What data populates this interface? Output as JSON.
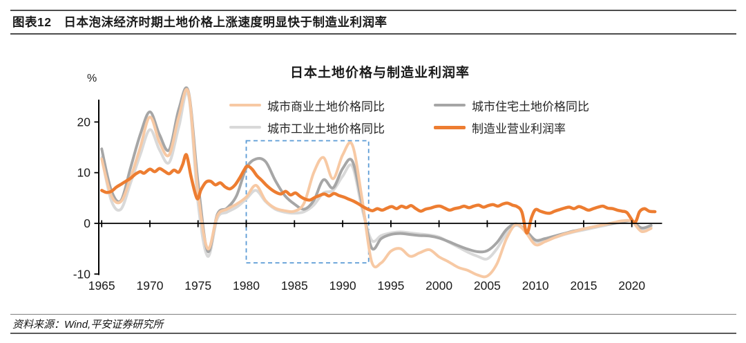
{
  "header": {
    "tag": "图表12",
    "title": "日本泡沫经济时期土地价格上涨速度明显快于制造业利润率"
  },
  "chart": {
    "title": "日本土地价格与制造业利润率",
    "unit_label": "%",
    "legend": [
      {
        "label": "城市商业土地价格同比",
        "color": "#F7C9A4"
      },
      {
        "label": "城市住宅土地价格同比",
        "color": "#A6A6A6"
      },
      {
        "label": "城市工业土地价格同比",
        "color": "#D9D9D9"
      },
      {
        "label": "制造业营业利润率",
        "color": "#ED7D31"
      }
    ]
  },
  "chart_data": {
    "type": "line",
    "title": "日本土地价格与制造业利润率",
    "ylabel": "%",
    "xlabel": "",
    "grid": false,
    "legend_position": "top",
    "xlim": [
      1964.7,
      2023.1
    ],
    "ylim": [
      -10.1,
      24.3
    ],
    "x_ticks": [
      1965,
      1970,
      1975,
      1980,
      1985,
      1990,
      1995,
      2000,
      2005,
      2010,
      2015,
      2020
    ],
    "y_ticks": [
      20,
      10,
      0,
      -10
    ],
    "axis_color": "#000000",
    "highlight_box": {
      "x0": 1980,
      "x1": 1992.7,
      "y0": -7.8,
      "y1": 16.3,
      "color": "#5B9BD5",
      "style": "dashed"
    },
    "series": [
      {
        "name": "城市商业土地价格同比",
        "color": "#F7C9A4",
        "width": 4,
        "z": 3,
        "points": [
          [
            1965,
            12.7
          ],
          [
            1966,
            5.5
          ],
          [
            1967,
            4.3
          ],
          [
            1968,
            9
          ],
          [
            1969,
            15
          ],
          [
            1970,
            21
          ],
          [
            1971,
            16
          ],
          [
            1972,
            13.5
          ],
          [
            1973,
            21
          ],
          [
            1974,
            25.8
          ],
          [
            1975,
            6
          ],
          [
            1976,
            -5
          ],
          [
            1977,
            1.5
          ],
          [
            1978,
            2.8
          ],
          [
            1979,
            3.8
          ],
          [
            1980,
            5.2
          ],
          [
            1981,
            7.5
          ],
          [
            1982,
            4.5
          ],
          [
            1983,
            3
          ],
          [
            1984,
            2.5
          ],
          [
            1985,
            2.4
          ],
          [
            1986,
            4
          ],
          [
            1987,
            10
          ],
          [
            1988,
            13
          ],
          [
            1989,
            8.8
          ],
          [
            1990,
            13.5
          ],
          [
            1991,
            15.5
          ],
          [
            1992,
            5
          ],
          [
            1993,
            -7.5
          ],
          [
            1994,
            -7.8
          ],
          [
            1995,
            -5.5
          ],
          [
            1996,
            -5
          ],
          [
            1997,
            -6.5
          ],
          [
            1998,
            -5.8
          ],
          [
            1999,
            -5.2
          ],
          [
            2000,
            -6.6
          ],
          [
            2001,
            -7.6
          ],
          [
            2002,
            -8.7
          ],
          [
            2003,
            -9.3
          ],
          [
            2004,
            -10.2
          ],
          [
            2005,
            -10.4
          ],
          [
            2006,
            -8
          ],
          [
            2007,
            -3
          ],
          [
            2008,
            -0.2
          ],
          [
            2009,
            -1.8
          ],
          [
            2010,
            -4.2
          ],
          [
            2011,
            -3.6
          ],
          [
            2012,
            -2.8
          ],
          [
            2013,
            -2.1
          ],
          [
            2014,
            -1.6
          ],
          [
            2015,
            -1.1
          ],
          [
            2016,
            -0.7
          ],
          [
            2017,
            -0.3
          ],
          [
            2018,
            0.1
          ],
          [
            2019,
            0.5
          ],
          [
            2020,
            0.4
          ],
          [
            2021,
            -1.6
          ],
          [
            2022,
            -1
          ]
        ]
      },
      {
        "name": "城市住宅土地价格同比",
        "color": "#A6A6A6",
        "width": 4,
        "z": 2,
        "points": [
          [
            1965,
            14.7
          ],
          [
            1966,
            6.5
          ],
          [
            1967,
            4.5
          ],
          [
            1968,
            11
          ],
          [
            1969,
            17.5
          ],
          [
            1970,
            22
          ],
          [
            1971,
            17.5
          ],
          [
            1972,
            14.5
          ],
          [
            1973,
            22.5
          ],
          [
            1974,
            26
          ],
          [
            1975,
            8
          ],
          [
            1976,
            -5.5
          ],
          [
            1977,
            1.8
          ],
          [
            1978,
            3
          ],
          [
            1979,
            5.5
          ],
          [
            1980,
            10.9
          ],
          [
            1981,
            12.7
          ],
          [
            1982,
            12.2
          ],
          [
            1983,
            8.5
          ],
          [
            1984,
            5.5
          ],
          [
            1985,
            3.8
          ],
          [
            1986,
            2.8
          ],
          [
            1987,
            4.5
          ],
          [
            1988,
            8.6
          ],
          [
            1989,
            7
          ],
          [
            1990,
            10.8
          ],
          [
            1991,
            12.3
          ],
          [
            1992,
            4
          ],
          [
            1993,
            -4.8
          ],
          [
            1994,
            -3
          ],
          [
            1995,
            -2.2
          ],
          [
            1996,
            -2
          ],
          [
            1997,
            -2.2
          ],
          [
            1998,
            -2.4
          ],
          [
            1999,
            -2.5
          ],
          [
            2000,
            -2.9
          ],
          [
            2001,
            -3.6
          ],
          [
            2002,
            -4.4
          ],
          [
            2003,
            -5.1
          ],
          [
            2004,
            -5.6
          ],
          [
            2005,
            -5.4
          ],
          [
            2006,
            -3.8
          ],
          [
            2007,
            -1.2
          ],
          [
            2008,
            -0.1
          ],
          [
            2009,
            -1.4
          ],
          [
            2010,
            -3.3
          ],
          [
            2011,
            -3
          ],
          [
            2012,
            -2.5
          ],
          [
            2013,
            -2
          ],
          [
            2014,
            -1.5
          ],
          [
            2015,
            -1.1
          ],
          [
            2016,
            -0.7
          ],
          [
            2017,
            -0.3
          ],
          [
            2018,
            0
          ],
          [
            2019,
            0.3
          ],
          [
            2020,
            0.5
          ],
          [
            2021,
            -0.9
          ],
          [
            2022,
            -0.4
          ]
        ]
      },
      {
        "name": "城市工业土地价格同比",
        "color": "#D9D9D9",
        "width": 4,
        "z": 1,
        "points": [
          [
            1965,
            13
          ],
          [
            1966,
            4.5
          ],
          [
            1967,
            2.8
          ],
          [
            1968,
            8
          ],
          [
            1969,
            13.5
          ],
          [
            1970,
            18.5
          ],
          [
            1971,
            14.5
          ],
          [
            1972,
            12
          ],
          [
            1973,
            19
          ],
          [
            1974,
            25.3
          ],
          [
            1975,
            4
          ],
          [
            1976,
            -6.5
          ],
          [
            1977,
            1
          ],
          [
            1978,
            2.2
          ],
          [
            1979,
            3.2
          ],
          [
            1980,
            4.8
          ],
          [
            1981,
            6.5
          ],
          [
            1982,
            4.3
          ],
          [
            1983,
            2.8
          ],
          [
            1984,
            2.2
          ],
          [
            1985,
            2
          ],
          [
            1986,
            2.3
          ],
          [
            1987,
            3.6
          ],
          [
            1988,
            6
          ],
          [
            1989,
            6.5
          ],
          [
            1990,
            9.3
          ],
          [
            1991,
            11.3
          ],
          [
            1992,
            3
          ],
          [
            1993,
            -3.3
          ],
          [
            1994,
            -2.4
          ],
          [
            1995,
            -1.9
          ],
          [
            1996,
            -1.7
          ],
          [
            1997,
            -1.9
          ],
          [
            1998,
            -2.1
          ],
          [
            1999,
            -2.3
          ],
          [
            2000,
            -2.7
          ],
          [
            2001,
            -3.7
          ],
          [
            2002,
            -4.7
          ],
          [
            2003,
            -5.7
          ],
          [
            2004,
            -6.5
          ],
          [
            2005,
            -7
          ],
          [
            2006,
            -5
          ],
          [
            2007,
            -2
          ],
          [
            2008,
            -0.4
          ],
          [
            2009,
            -1.6
          ],
          [
            2010,
            -3.6
          ],
          [
            2011,
            -3.3
          ],
          [
            2012,
            -2.8
          ],
          [
            2013,
            -2.2
          ],
          [
            2014,
            -1.7
          ],
          [
            2015,
            -1.3
          ],
          [
            2016,
            -0.9
          ],
          [
            2017,
            -0.5
          ],
          [
            2018,
            -0.1
          ],
          [
            2019,
            0.2
          ],
          [
            2020,
            0.4
          ],
          [
            2021,
            -1.1
          ],
          [
            2022,
            -0.7
          ]
        ]
      },
      {
        "name": "制造业营业利润率",
        "color": "#ED7D31",
        "width": 4.5,
        "z": 4,
        "points": [
          [
            1965,
            6.5
          ],
          [
            1965.5,
            6.1
          ],
          [
            1966,
            6.3
          ],
          [
            1966.5,
            7.1
          ],
          [
            1967,
            7.7
          ],
          [
            1967.5,
            8.3
          ],
          [
            1968,
            8.9
          ],
          [
            1968.5,
            9.7
          ],
          [
            1969,
            10.2
          ],
          [
            1969.4,
            9.9
          ],
          [
            1970,
            10.7
          ],
          [
            1970.5,
            10.2
          ],
          [
            1971,
            10.8
          ],
          [
            1971.5,
            10.3
          ],
          [
            1972,
            9.8
          ],
          [
            1972.5,
            10.5
          ],
          [
            1973,
            10.1
          ],
          [
            1973.4,
            11.6
          ],
          [
            1973.8,
            13.5
          ],
          [
            1974.3,
            9
          ],
          [
            1974.9,
            4.9
          ],
          [
            1975.3,
            6.6
          ],
          [
            1975.8,
            8.1
          ],
          [
            1976.3,
            8.3
          ],
          [
            1976.8,
            7.6
          ],
          [
            1977.3,
            8
          ],
          [
            1977.8,
            7.2
          ],
          [
            1978.3,
            6.8
          ],
          [
            1978.8,
            7.5
          ],
          [
            1979.3,
            8.9
          ],
          [
            1979.8,
            10.6
          ],
          [
            1980.1,
            11.3
          ],
          [
            1980.6,
            10.7
          ],
          [
            1981.1,
            9.4
          ],
          [
            1981.6,
            8.5
          ],
          [
            1982.1,
            7.5
          ],
          [
            1982.6,
            6.7
          ],
          [
            1983.1,
            6.1
          ],
          [
            1983.6,
            5.8
          ],
          [
            1984.1,
            6.3
          ],
          [
            1984.6,
            5.6
          ],
          [
            1985.1,
            6
          ],
          [
            1985.6,
            5.3
          ],
          [
            1986.1,
            4.8
          ],
          [
            1986.6,
            4.6
          ],
          [
            1987.1,
            5.1
          ],
          [
            1987.6,
            5.5
          ],
          [
            1988.1,
            5.8
          ],
          [
            1988.6,
            5.4
          ],
          [
            1989.1,
            5.9
          ],
          [
            1989.6,
            5.5
          ],
          [
            1990.1,
            5.2
          ],
          [
            1990.6,
            4.8
          ],
          [
            1991.1,
            4.4
          ],
          [
            1991.6,
            3.9
          ],
          [
            1992.1,
            3.3
          ],
          [
            1992.6,
            2.8
          ],
          [
            1993.1,
            2.5
          ],
          [
            1993.6,
            2.9
          ],
          [
            1994.1,
            2.6
          ],
          [
            1994.6,
            3
          ],
          [
            1995.1,
            3.3
          ],
          [
            1995.6,
            2.9
          ],
          [
            1996.1,
            3.4
          ],
          [
            1996.6,
            3.1
          ],
          [
            1997.1,
            3.5
          ],
          [
            1997.6,
            2.9
          ],
          [
            1998.1,
            2.4
          ],
          [
            1998.6,
            2.8
          ],
          [
            1999.1,
            3
          ],
          [
            1999.6,
            3.3
          ],
          [
            2000.1,
            3.4
          ],
          [
            2000.6,
            3
          ],
          [
            2001.1,
            2.6
          ],
          [
            2001.6,
            2.9
          ],
          [
            2002.1,
            3.1
          ],
          [
            2002.6,
            3.4
          ],
          [
            2003.1,
            3.1
          ],
          [
            2003.6,
            3.4
          ],
          [
            2004.1,
            3.6
          ],
          [
            2004.6,
            3.2
          ],
          [
            2005.1,
            3.5
          ],
          [
            2005.6,
            3.7
          ],
          [
            2006.1,
            3.4
          ],
          [
            2006.6,
            3.8
          ],
          [
            2007.1,
            4
          ],
          [
            2007.6,
            3.6
          ],
          [
            2008.1,
            3.3
          ],
          [
            2008.6,
            2.2
          ],
          [
            2009.1,
            -1.9
          ],
          [
            2009.6,
            1.2
          ],
          [
            2010,
            2.7
          ],
          [
            2010.5,
            2.4
          ],
          [
            2011,
            2.1
          ],
          [
            2011.5,
            2
          ],
          [
            2012,
            2.4
          ],
          [
            2012.5,
            2.7
          ],
          [
            2013,
            3
          ],
          [
            2013.5,
            3.2
          ],
          [
            2014,
            2.9
          ],
          [
            2014.5,
            3.3
          ],
          [
            2015,
            3
          ],
          [
            2015.5,
            2.6
          ],
          [
            2016,
            2.9
          ],
          [
            2016.5,
            3.2
          ],
          [
            2017,
            3.4
          ],
          [
            2017.5,
            3
          ],
          [
            2018,
            2.9
          ],
          [
            2018.5,
            2.6
          ],
          [
            2019,
            2.4
          ],
          [
            2019.5,
            2.1
          ],
          [
            2020.3,
            0.2
          ],
          [
            2020.8,
            2.3
          ],
          [
            2021.3,
            2.9
          ],
          [
            2021.8,
            2.4
          ],
          [
            2022.4,
            2.3
          ]
        ]
      }
    ]
  },
  "footer": {
    "source": "资料来源：Wind,平安证券研究所"
  }
}
